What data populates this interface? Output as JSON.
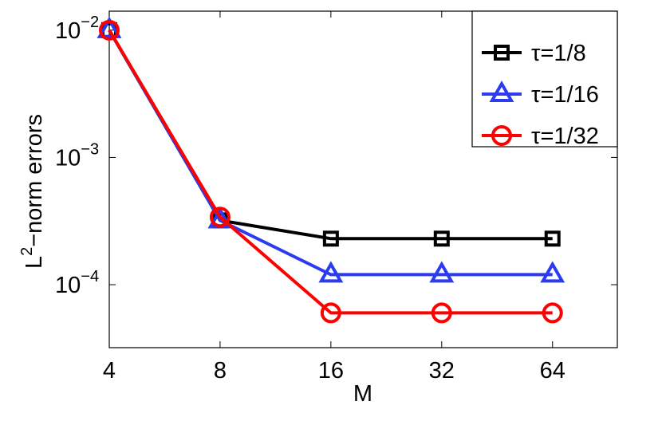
{
  "chart_data": {
    "type": "line",
    "xlabel": "M",
    "ylabel": [
      "L",
      "2",
      "−norm errors"
    ],
    "x": [
      4,
      8,
      16,
      32,
      64
    ],
    "xscale": "log",
    "yscale": "log",
    "xlim": [
      4,
      96
    ],
    "ylim": [
      3.2e-05,
      0.0141
    ],
    "xticks": [
      4,
      8,
      16,
      32,
      64
    ],
    "yticks": [
      {
        "value": 0.01,
        "label": "10",
        "exponent": "−2"
      },
      {
        "value": 0.001,
        "label": "10",
        "exponent": "−3"
      },
      {
        "value": 0.0001,
        "label": "10",
        "exponent": "−4"
      }
    ],
    "legend": "top-right",
    "series": [
      {
        "name": "τ=1/8",
        "color": "#000000",
        "marker": "square",
        "values": [
          0.01,
          0.00032,
          0.00023,
          0.00023,
          0.00023
        ]
      },
      {
        "name": "τ=1/16",
        "color": "#2a3bf0",
        "marker": "triangle",
        "values": [
          0.01,
          0.00032,
          0.00012,
          0.00012,
          0.00012
        ]
      },
      {
        "name": "τ=1/32",
        "color": "#ff0000",
        "marker": "circle",
        "values": [
          0.01,
          0.00034,
          6e-05,
          6e-05,
          6e-05
        ]
      }
    ]
  }
}
